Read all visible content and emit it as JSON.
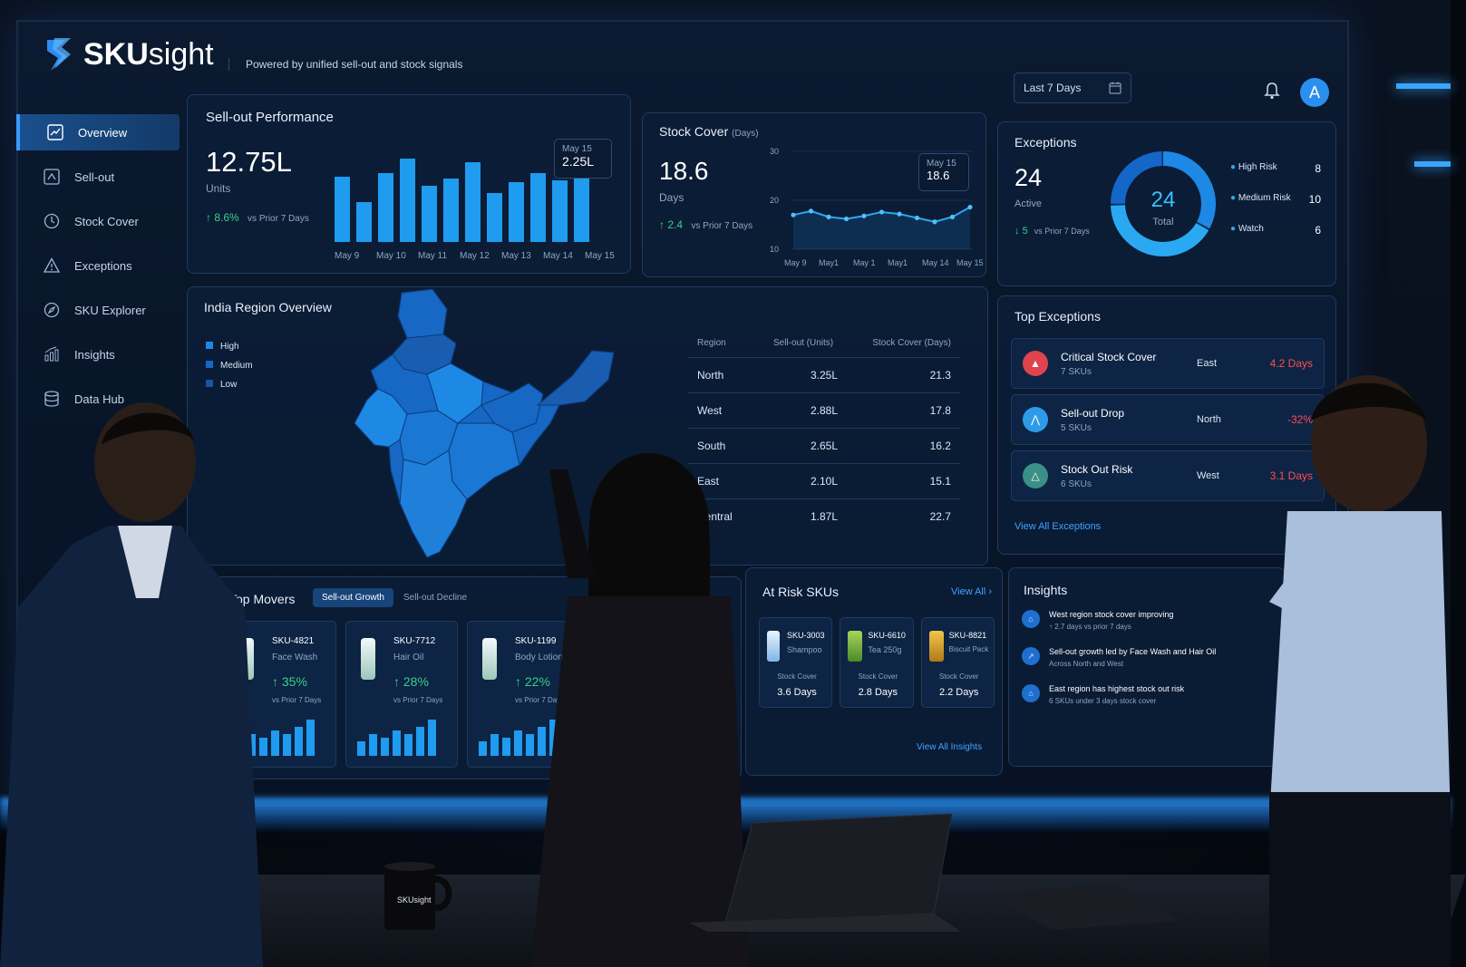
{
  "app": {
    "logo_bold": "SKU",
    "logo_light": "sight",
    "tagline": "Powered by unified sell-out and stock signals",
    "date_filter": "Last 7 Days",
    "avatar": "A"
  },
  "sidebar": {
    "items": [
      {
        "label": "Overview",
        "icon": "chart-icon"
      },
      {
        "label": "Sell-out",
        "icon": "upload-icon"
      },
      {
        "label": "Stock Cover",
        "icon": "clock-icon"
      },
      {
        "label": "Exceptions",
        "icon": "warning-icon"
      },
      {
        "label": "SKU Explorer",
        "icon": "explore-icon"
      },
      {
        "label": "Insights",
        "icon": "insights-icon"
      },
      {
        "label": "Data Hub",
        "icon": "database-icon"
      }
    ]
  },
  "sellout": {
    "title": "Sell-out Performance",
    "value": "12.75L",
    "unit": "Units",
    "delta": "8.6%",
    "delta_note": "vs Prior 7 Days",
    "tooltip_date": "May 15",
    "tooltip_value": "2.25L",
    "x_labels": [
      "May 9",
      "May 10",
      "May 11",
      "May 12",
      "May 13",
      "May 14",
      "May 15"
    ]
  },
  "stock": {
    "title": "Stock Cover",
    "title_unit": "(Days)",
    "value": "18.6",
    "unit": "Days",
    "delta": "2.4",
    "delta_note": "vs Prior 7 Days",
    "tooltip_date": "May 15",
    "tooltip_value": "18.6",
    "y_ticks": [
      "30",
      "20",
      "10"
    ],
    "x_labels": [
      "May 9",
      "May1",
      "May 1",
      "May1",
      "May 14",
      "May 15"
    ]
  },
  "exceptions": {
    "title": "Exceptions",
    "value": "24",
    "unit": "Active",
    "delta": "5",
    "delta_note": "vs Prior 7 Days",
    "donut_value": "24",
    "donut_label": "Total",
    "legend": [
      {
        "label": "High Risk",
        "count": "8"
      },
      {
        "label": "Medium Risk",
        "count": "10"
      },
      {
        "label": "Watch",
        "count": "6"
      }
    ]
  },
  "region": {
    "title": "India Region Overview",
    "legend": [
      "High",
      "Medium",
      "Low"
    ],
    "headers": [
      "Region",
      "Sell-out (Units)",
      "Stock Cover (Days)"
    ],
    "rows": [
      [
        "North",
        "3.25L",
        "21.3"
      ],
      [
        "West",
        "2.88L",
        "17.8"
      ],
      [
        "South",
        "2.65L",
        "16.2"
      ],
      [
        "East",
        "2.10L",
        "15.1"
      ],
      [
        "Central",
        "1.87L",
        "22.7"
      ]
    ]
  },
  "top_exceptions": {
    "title": "Top Exceptions",
    "items": [
      {
        "name": "Critical Stock Cover",
        "skus": "7 SKUs",
        "region": "East",
        "value": "4.2 Days",
        "color": "#e0434d"
      },
      {
        "name": "Sell-out Drop",
        "skus": "5 SKUs",
        "region": "North",
        "value": "-32%",
        "color": "#2e9be8"
      },
      {
        "name": "Stock Out Risk",
        "skus": "6 SKUs",
        "region": "West",
        "value": "3.1 Days",
        "color": "#3a8f86"
      }
    ],
    "link": "View All Exceptions"
  },
  "movers": {
    "title": "Top Movers",
    "tab_active": "Sell-out Growth",
    "tab_inactive": "Sell-out Decline",
    "cards": [
      {
        "sku": "SKU-4821",
        "name": "Face Wash",
        "growth": "35%",
        "note": "vs Prior 7 Days"
      },
      {
        "sku": "SKU-7712",
        "name": "Hair Oil",
        "growth": "28%",
        "note": "vs Prior 7 Days"
      },
      {
        "sku": "SKU-1199",
        "name": "Body Lotion",
        "growth": "22%",
        "note": "vs Prior 7 Days"
      }
    ]
  },
  "at_risk": {
    "title": "At Risk SKUs",
    "link": "View All",
    "cards": [
      {
        "sku": "SKU-3003",
        "name": "Shampoo",
        "label": "Stock Cover",
        "value": "3.6 Days"
      },
      {
        "sku": "SKU-6610",
        "name": "Tea 250g",
        "label": "Stock Cover",
        "value": "2.8 Days"
      },
      {
        "sku": "SKU-8821",
        "name": "Biscuit Pack",
        "label": "Stock Cover",
        "value": "2.2 Days"
      }
    ],
    "footer_link": "View All Insights"
  },
  "insights": {
    "title": "Insights",
    "items": [
      {
        "text": "West region stock cover improving",
        "sub": "2.7 days vs prior 7 days"
      },
      {
        "text": "Sell-out growth led by Face Wash and Hair Oil",
        "sub": "Across North and West"
      },
      {
        "text": "East region has highest stock out risk",
        "sub": "6 SKUs under 3 days stock cover"
      }
    ]
  },
  "mug_logo": "SKUsight",
  "colors": {
    "accent": "#3a9bff",
    "positive": "#37d08b",
    "negative": "#ff4d55",
    "bar": "#1f9bef"
  }
}
